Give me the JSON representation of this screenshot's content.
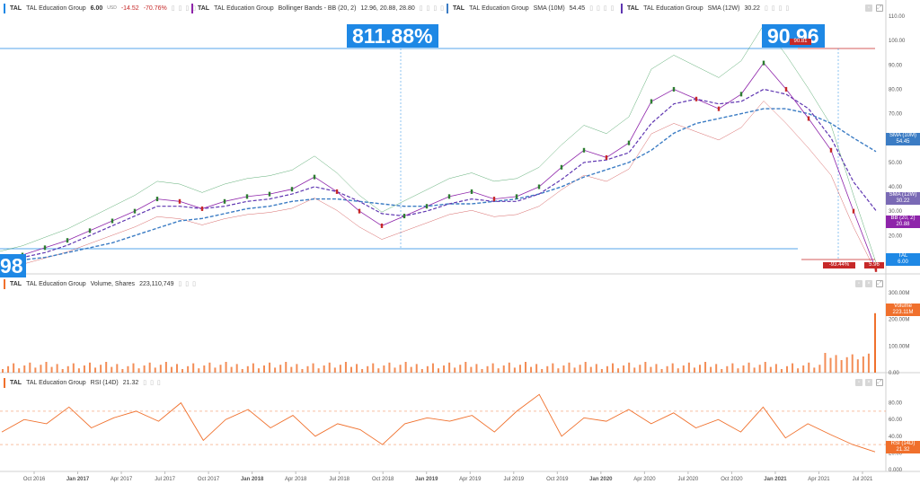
{
  "legend": {
    "main": {
      "sym": "TAL",
      "name": "TAL Education Group",
      "price": "6.00",
      "cur": "USD",
      "chg": "-14.52",
      "pct": "-70.76%"
    },
    "bb": {
      "sym": "TAL",
      "name": "TAL Education Group",
      "label": "Bollinger Bands - BB (20, 2)",
      "vals": "12.96, 20.88, 28.80"
    },
    "sma10": {
      "sym": "TAL",
      "name": "TAL Education Group",
      "label": "SMA (10M)",
      "val": "54.45"
    },
    "sma12": {
      "sym": "TAL",
      "name": "TAL Education Group",
      "label": "SMA (12W)",
      "val": "30.22"
    },
    "vol": {
      "sym": "TAL",
      "name": "TAL Education Group",
      "label": "Volume, Shares",
      "val": "223,110,749"
    },
    "rsi": {
      "sym": "TAL",
      "name": "TAL Education Group",
      "label": "RSI (14D)",
      "val": "21.32"
    }
  },
  "annotations": {
    "gain": "811.88%",
    "peak": "90.96",
    "peak_small": "90.81",
    "drop": "-93.44%",
    "low": "5.96",
    "left_cut": "98"
  },
  "price_tags": {
    "sma10": {
      "label": "SMA (10M)",
      "val": "54.45"
    },
    "sma12": {
      "label": "SMA (12W)",
      "val": "30.22"
    },
    "bb": {
      "label": "BB (20, 2)",
      "val": "20.88"
    },
    "tal": {
      "label": "TAL",
      "val": "6.00"
    },
    "volume": {
      "label": "Volume",
      "val": "223.11M"
    },
    "rsi": {
      "label": "RSI (14D)",
      "val": "21.32"
    }
  },
  "colors": {
    "price": "#1a8a3a",
    "bb": "#8e24aa",
    "sma10": "#3b7cc4",
    "sma12": "#5e35b1",
    "up": "#2e7d32",
    "down": "#c62828",
    "rsi": "#f0702c",
    "vol": "#f0702c",
    "accent": "#1e88e5"
  },
  "chart_data": [
    {
      "type": "line",
      "title": "TAL Education Group",
      "x_ticks": [
        "Oct 2016",
        "Jan 2017",
        "Apr 2017",
        "Jul 2017",
        "Oct 2017",
        "Jan 2018",
        "Apr 2018",
        "Jul 2018",
        "Oct 2018",
        "Jan 2019",
        "Apr 2019",
        "Jul 2019",
        "Oct 2019",
        "Jan 2020",
        "Apr 2020",
        "Jul 2020",
        "Oct 2020",
        "Jan 2021",
        "Apr 2021",
        "Jul 2021"
      ],
      "y_ticks": [
        "10.00",
        "20.00",
        "30.00",
        "40.00",
        "50.00",
        "60.00",
        "70.00",
        "80.00",
        "90.00",
        "100.00",
        "110.00"
      ],
      "ylim": [
        5,
        110
      ],
      "x": [
        "2016-08",
        "2016-10",
        "2016-12",
        "2017-01",
        "2017-03",
        "2017-05",
        "2017-07",
        "2017-09",
        "2017-10",
        "2017-12",
        "2018-01",
        "2018-03",
        "2018-05",
        "2018-06",
        "2018-07",
        "2018-09",
        "2018-10",
        "2018-12",
        "2019-01",
        "2019-03",
        "2019-05",
        "2019-07",
        "2019-09",
        "2019-11",
        "2020-01",
        "2020-02",
        "2020-03",
        "2020-05",
        "2020-06",
        "2020-07",
        "2020-09",
        "2020-10",
        "2020-12",
        "2021-01",
        "2021-02",
        "2021-03",
        "2021-04",
        "2021-05",
        "2021-06",
        "2021-07"
      ],
      "series": [
        {
          "name": "TAL",
          "values": [
            10,
            12,
            15,
            18,
            22,
            26,
            30,
            35,
            34,
            31,
            34,
            36,
            37,
            39,
            44,
            38,
            30,
            24,
            28,
            32,
            36,
            38,
            35,
            36,
            40,
            48,
            55,
            52,
            58,
            75,
            80,
            76,
            72,
            78,
            90.8,
            80,
            68,
            55,
            30,
            6
          ]
        },
        {
          "name": "SMA (10M)",
          "values": [
            9,
            10,
            11,
            13,
            15,
            17,
            20,
            23,
            26,
            27,
            29,
            31,
            32,
            34,
            35,
            35,
            34,
            33,
            32,
            32,
            33,
            33,
            34,
            35,
            37,
            40,
            44,
            47,
            50,
            55,
            62,
            66,
            68,
            70,
            72,
            72,
            70,
            66,
            60,
            54.45
          ]
        },
        {
          "name": "SMA (12W)",
          "values": [
            9,
            11,
            13,
            16,
            20,
            24,
            28,
            32,
            32,
            31,
            32,
            34,
            35,
            37,
            40,
            38,
            34,
            29,
            28,
            30,
            33,
            35,
            34,
            34,
            37,
            43,
            50,
            51,
            54,
            66,
            74,
            76,
            74,
            75,
            80,
            78,
            72,
            60,
            42,
            30.22
          ]
        }
      ]
    },
    {
      "type": "bar",
      "title": "Volume, Shares",
      "y_ticks": [
        "0.00",
        "100.00M",
        "200.00M",
        "300.00M"
      ],
      "ylim": [
        0,
        320
      ],
      "last_value": "223.11M"
    },
    {
      "type": "line",
      "title": "RSI (14D)",
      "y_ticks": [
        "0.000",
        "20.00",
        "40.00",
        "60.00",
        "80.00"
      ],
      "ylim": [
        0,
        100
      ],
      "reference_lines": [
        30,
        70
      ],
      "values": [
        45,
        60,
        55,
        75,
        50,
        62,
        70,
        58,
        80,
        35,
        60,
        72,
        50,
        65,
        40,
        55,
        48,
        30,
        55,
        62,
        58,
        65,
        45,
        70,
        90,
        40,
        62,
        58,
        72,
        55,
        68,
        50,
        60,
        45,
        75,
        38,
        55,
        42,
        30,
        21.32
      ]
    }
  ]
}
